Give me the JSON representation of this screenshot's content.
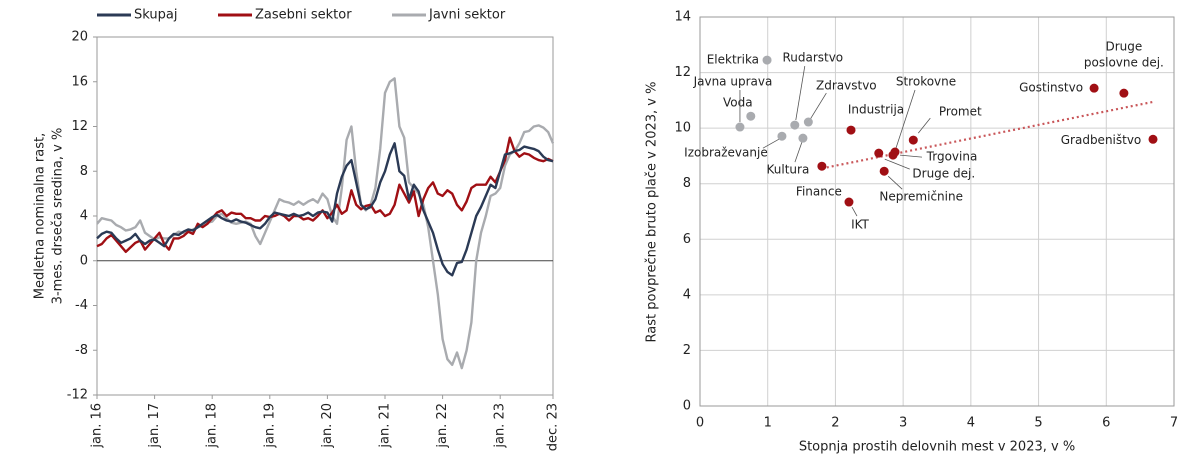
{
  "chart_data": [
    {
      "type": "line",
      "ylabel": [
        "Medletna nominalna rast,",
        "3-mes. drseča sredina, v %"
      ],
      "categories": [
        "jan. 16",
        null,
        null,
        null,
        null,
        null,
        null,
        null,
        null,
        null,
        null,
        null,
        "jan. 17",
        null,
        null,
        null,
        null,
        null,
        null,
        null,
        null,
        null,
        null,
        null,
        "jan. 18",
        null,
        null,
        null,
        null,
        null,
        null,
        null,
        null,
        null,
        null,
        null,
        "jan. 19",
        null,
        null,
        null,
        null,
        null,
        null,
        null,
        null,
        null,
        null,
        null,
        "jan. 20",
        null,
        null,
        null,
        null,
        null,
        null,
        null,
        null,
        null,
        null,
        null,
        "jan. 21",
        null,
        null,
        null,
        null,
        null,
        null,
        null,
        null,
        null,
        null,
        null,
        "jan. 22",
        null,
        null,
        null,
        null,
        null,
        null,
        null,
        null,
        null,
        null,
        null,
        "jan. 23",
        null,
        null,
        null,
        null,
        null,
        null,
        null,
        null,
        null,
        null,
        "dec. 23"
      ],
      "series": [
        {
          "name": "Skupaj",
          "color": "#2b3a55",
          "values": [
            2.0,
            2.4,
            2.6,
            2.5,
            2.0,
            1.6,
            1.8,
            2.0,
            2.4,
            1.8,
            1.5,
            1.8,
            1.9,
            1.6,
            1.3,
            2.0,
            2.4,
            2.3,
            2.6,
            2.8,
            2.7,
            3.0,
            3.3,
            3.6,
            3.9,
            4.1,
            3.8,
            3.6,
            3.5,
            3.7,
            3.5,
            3.4,
            3.2,
            3.0,
            2.9,
            3.3,
            3.9,
            4.3,
            4.2,
            4.1,
            4.0,
            4.2,
            4.0,
            4.1,
            4.3,
            4.0,
            4.3,
            4.4,
            4.3,
            3.5,
            6.0,
            7.5,
            8.5,
            9.0,
            7.0,
            5.0,
            4.6,
            4.8,
            5.5,
            7.0,
            8.0,
            9.5,
            10.5,
            8.0,
            7.6,
            5.5,
            6.8,
            6.2,
            4.5,
            3.5,
            2.5,
            1.0,
            -0.3,
            -1.0,
            -1.3,
            -0.2,
            -0.1,
            1.0,
            2.5,
            4.0,
            4.8,
            5.8,
            6.8,
            6.5,
            8.0,
            9.5,
            9.6,
            9.8,
            9.9,
            10.2,
            10.1,
            10.0,
            9.8,
            9.3,
            9.0,
            8.9
          ]
        },
        {
          "name": "Zasebni sektor",
          "color": "#a00f14",
          "values": [
            1.3,
            1.5,
            2.0,
            2.3,
            1.8,
            1.3,
            0.8,
            1.2,
            1.6,
            1.8,
            1.0,
            1.5,
            2.0,
            2.5,
            1.5,
            1.0,
            2.0,
            2.0,
            2.2,
            2.6,
            2.4,
            3.3,
            3.0,
            3.3,
            3.8,
            4.3,
            4.5,
            4.0,
            4.3,
            4.2,
            4.2,
            3.8,
            3.8,
            3.6,
            3.6,
            4.0,
            3.9,
            4.0,
            4.2,
            4.0,
            3.6,
            4.0,
            4.0,
            3.7,
            3.8,
            3.6,
            4.0,
            4.5,
            3.8,
            4.3,
            5.0,
            4.2,
            4.5,
            6.3,
            5.0,
            4.6,
            4.9,
            5.0,
            4.3,
            4.5,
            4.0,
            4.2,
            5.0,
            6.8,
            6.0,
            5.2,
            6.2,
            4.0,
            5.5,
            6.5,
            7.0,
            6.0,
            5.8,
            6.3,
            6.0,
            5.0,
            4.5,
            5.3,
            6.5,
            6.8,
            6.8,
            6.8,
            7.5,
            7.0,
            8.0,
            9.0,
            11.0,
            9.8,
            9.3,
            9.6,
            9.5,
            9.2,
            9.0,
            8.9,
            9.1,
            8.9
          ]
        },
        {
          "name": "Javni sektor",
          "color": "#a9abaf",
          "values": [
            3.3,
            3.8,
            3.7,
            3.6,
            3.2,
            3.0,
            2.7,
            2.8,
            3.0,
            3.6,
            2.5,
            2.2,
            1.9,
            2.1,
            2.0,
            2.0,
            2.3,
            2.6,
            2.5,
            2.6,
            2.8,
            3.0,
            3.1,
            3.4,
            3.5,
            4.0,
            4.2,
            3.8,
            3.4,
            3.3,
            3.4,
            3.5,
            3.3,
            2.2,
            1.5,
            2.5,
            3.5,
            4.5,
            5.5,
            5.3,
            5.2,
            5.0,
            5.3,
            5.0,
            5.3,
            5.5,
            5.2,
            6.0,
            5.5,
            4.0,
            3.3,
            6.5,
            10.8,
            12.0,
            8.0,
            5.0,
            4.5,
            5.0,
            6.5,
            10.0,
            15.0,
            16.0,
            16.3,
            12.0,
            11.0,
            7.0,
            6.5,
            6.0,
            5.0,
            3.0,
            0.0,
            -3.0,
            -7.0,
            -8.8,
            -9.3,
            -8.2,
            -9.6,
            -8.0,
            -5.5,
            0.0,
            2.5,
            4.0,
            5.8,
            6.0,
            6.5,
            8.5,
            9.5,
            9.8,
            10.5,
            11.5,
            11.6,
            12.0,
            12.1,
            11.9,
            11.5,
            10.5
          ]
        }
      ],
      "ylim": [
        -12,
        20
      ],
      "yticks": [
        -12,
        -8,
        -4,
        0,
        4,
        8,
        12,
        16,
        20
      ],
      "legend": "top",
      "grid": false
    },
    {
      "type": "scatter",
      "xlabel": "Stopnja prostih delovnih mest v 2023, v %",
      "ylabel": "Rast povprečne bruto plače v 2023, v %",
      "series": [
        {
          "color": "#a9abaf",
          "labels": [
            "Elektrika",
            "Voda",
            "Javna uprava",
            "Rudarstvo",
            "Zdravstvo",
            "Izobraževanje",
            "Kultura"
          ],
          "x": [
            0.99,
            0.75,
            0.59,
            1.4,
            1.6,
            1.21,
            1.52
          ],
          "y": [
            12.45,
            10.43,
            10.04,
            10.11,
            10.22,
            9.71,
            9.64
          ]
        },
        {
          "color": "#a00f14",
          "labels": [
            "Industrija",
            "Strokovne",
            "Druge dej.",
            "Trgovina",
            "Promet",
            "Nepremičnine",
            "Finance",
            "IKT",
            "Gostinstvo",
            [
              "Druge",
              "poslovne dej."
            ],
            "Gradbeništvo"
          ],
          "x": [
            2.23,
            2.88,
            2.64,
            2.85,
            3.15,
            2.72,
            1.8,
            2.2,
            5.82,
            6.26,
            6.69
          ],
          "y": [
            9.93,
            9.14,
            9.1,
            9.03,
            9.57,
            8.45,
            8.63,
            7.34,
            11.44,
            11.26,
            9.6
          ]
        }
      ],
      "trendline": {
        "color": "#c9575a",
        "x": [
          1.8,
          6.7
        ],
        "y": [
          8.55,
          10.95
        ]
      },
      "xlim": [
        0,
        7
      ],
      "xticks": [
        0,
        1,
        2,
        3,
        4,
        5,
        6,
        7
      ],
      "ylim": [
        0,
        14
      ],
      "yticks": [
        0,
        2,
        4,
        6,
        8,
        10,
        12,
        14
      ],
      "grid": true
    }
  ]
}
